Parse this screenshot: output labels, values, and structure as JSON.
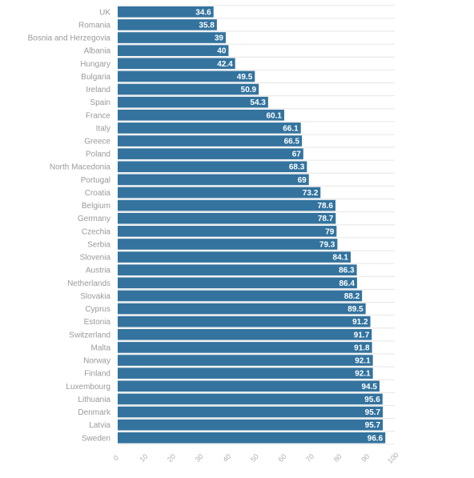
{
  "chart_data": {
    "type": "bar",
    "orientation": "horizontal",
    "categories": [
      "UK",
      "Romania",
      "Bosnia and Herzegovia",
      "Albania",
      "Hungary",
      "Bulgaria",
      "Ireland",
      "Spain",
      "France",
      "Italy",
      "Greece",
      "Poland",
      "North Macedonia",
      "Portugal",
      "Croatia",
      "Belgium",
      "Germany",
      "Czechia",
      "Serbia",
      "Slovenia",
      "Austria",
      "Netherlands",
      "Slovakia",
      "Cyprus",
      "Estonia",
      "Switzerland",
      "Malta",
      "Norway",
      "Finland",
      "Luxembourg",
      "Lithuania",
      "Denmark",
      "Latvia",
      "Sweden"
    ],
    "values": [
      34.6,
      35.8,
      39,
      40,
      42.4,
      49.5,
      50.9,
      54.3,
      60.1,
      66.1,
      66.5,
      67,
      68.3,
      69,
      73.2,
      78.6,
      78.7,
      79,
      79.3,
      84.1,
      86.3,
      86.4,
      88.2,
      89.5,
      91.2,
      91.7,
      91.8,
      92.1,
      92.1,
      94.5,
      95.6,
      95.7,
      95.7,
      96.6
    ],
    "value_labels": [
      "34.6",
      "35.8",
      "39",
      "40",
      "42.4",
      "49.5",
      "50.9",
      "54.3",
      "60.1",
      "66.1",
      "66.5",
      "67",
      "68.3",
      "69",
      "73.2",
      "78.6",
      "78.7",
      "79",
      "79.3",
      "84.1",
      "86.3",
      "86.4",
      "88.2",
      "89.5",
      "91.2",
      "91.7",
      "91.8",
      "92.1",
      "92.1",
      "94.5",
      "95.6",
      "95.7",
      "95.7",
      "96.6"
    ],
    "xlim": [
      0,
      100
    ],
    "x_ticks": [
      "0",
      "10",
      "20",
      "30",
      "40",
      "50",
      "60",
      "70",
      "80",
      "90",
      "100"
    ],
    "title": "",
    "xlabel": "",
    "ylabel": "",
    "grid": true,
    "colors": {
      "bar": "#33739e",
      "label": "#9a9a9a",
      "tick": "#b0b0b0",
      "grid": "#e6e6e6",
      "value_text": "#ffffff"
    }
  }
}
